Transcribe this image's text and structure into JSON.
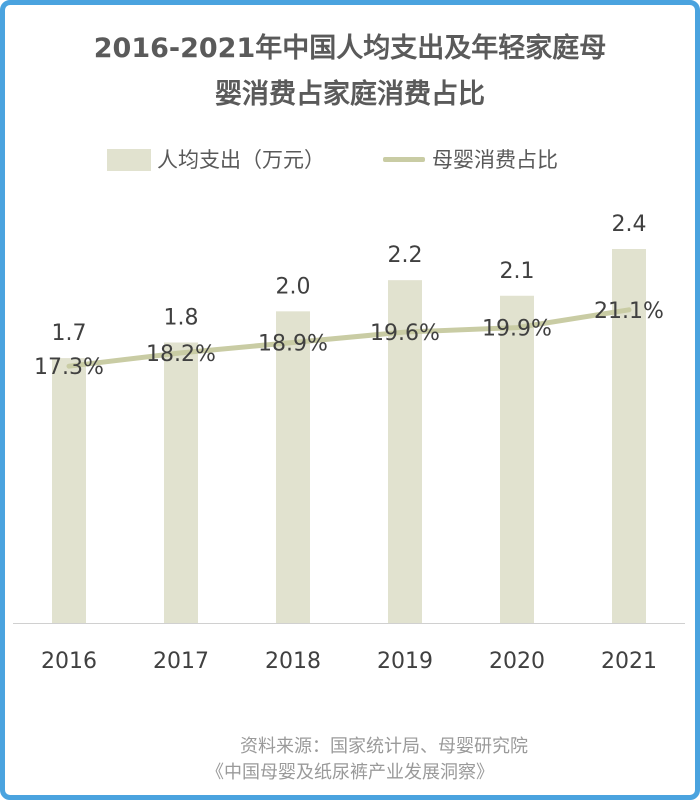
{
  "title": {
    "line1": "2016-2021年中国人均支出及年轻家庭母",
    "line2": "婴消费占家庭消费占比"
  },
  "legend": {
    "bar_label": "人均支出（万元）",
    "line_label": "母婴消费占比"
  },
  "colors": {
    "bar": "#e1e2cf",
    "line": "#c9cca4",
    "frame": "#4aa3df",
    "text": "#404040"
  },
  "chart_data": {
    "type": "bar+line",
    "categories": [
      "2016",
      "2017",
      "2018",
      "2019",
      "2020",
      "2021"
    ],
    "series": [
      {
        "name": "人均支出（万元）",
        "type": "bar",
        "values": [
          1.7,
          1.8,
          2.0,
          2.2,
          2.1,
          2.4
        ],
        "labels": [
          "1.7",
          "1.8",
          "2.0",
          "2.2",
          "2.1",
          "2.4"
        ]
      },
      {
        "name": "母婴消费占比",
        "type": "line",
        "values": [
          17.3,
          18.2,
          18.9,
          19.6,
          19.9,
          21.1
        ],
        "labels": [
          "17.3%",
          "18.2%",
          "18.9%",
          "19.6%",
          "19.9%",
          "21.1%"
        ]
      }
    ],
    "bar_ylim": [
      0,
      2.4
    ],
    "line_ylim": [
      0,
      32
    ],
    "grid": false
  },
  "source": {
    "line1": "资料来源：国家统计局、母婴研究院",
    "line2": "《中国母婴及纸尿裤产业发展洞察》"
  }
}
